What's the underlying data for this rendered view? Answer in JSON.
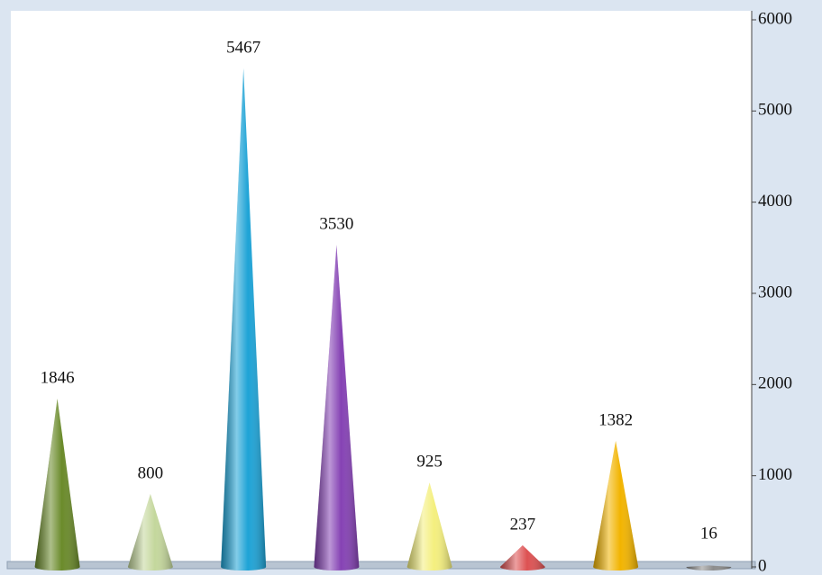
{
  "chart_data": {
    "type": "cone",
    "categories": [
      null,
      null,
      null,
      null,
      null,
      null,
      null,
      null
    ],
    "values": [
      1846,
      800,
      5467,
      3530,
      925,
      237,
      1382,
      16
    ],
    "colors": [
      "#6a8a2a",
      "#c4d79c",
      "#1ea3d6",
      "#8542b4",
      "#f4ef7e",
      "#dd5152",
      "#f2b400",
      "#8c8c8c"
    ],
    "ylim": [
      0,
      6000
    ],
    "yticks": [
      0,
      1000,
      2000,
      3000,
      4000,
      5000,
      6000
    ],
    "axis_side": "right",
    "grid": false
  }
}
